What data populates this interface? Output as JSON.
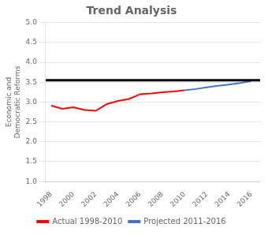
{
  "chart_data": {
    "type": "line",
    "title": "Trend Analysis",
    "ylabel": [
      "Economic and",
      "Democratic Reforms"
    ],
    "series": [
      {
        "name": "Actual 1998-2010",
        "color": "#FF0000",
        "x": [
          1998,
          1999,
          2000,
          2001,
          2002,
          2003,
          2004,
          2005,
          2006,
          2007,
          2008,
          2009,
          2010
        ],
        "values": [
          2.91,
          2.83,
          2.87,
          2.8,
          2.78,
          2.95,
          3.03,
          3.08,
          3.2,
          3.22,
          3.25,
          3.27,
          3.3
        ]
      },
      {
        "name": "Projected 2011-2016",
        "color": "#4472C4",
        "x": [
          2010,
          2011,
          2012,
          2013,
          2014,
          2015,
          2016
        ],
        "values": [
          3.3,
          3.33,
          3.37,
          3.41,
          3.44,
          3.48,
          3.53
        ]
      }
    ],
    "hlines": [
      {
        "value": 3.55,
        "color": "#000000"
      }
    ],
    "xlim": [
      1997.5,
      2016.8
    ],
    "xticks": [
      1998,
      2000,
      2002,
      2004,
      2006,
      2008,
      2010,
      2012,
      2014,
      2016
    ],
    "ylim": [
      1,
      5
    ],
    "yticks": [
      {
        "value": 1,
        "label": "1.0"
      },
      1.5,
      {
        "value": 2,
        "label": "2.0"
      },
      2.5,
      {
        "value": 3,
        "label": "3.0"
      },
      3.5,
      {
        "value": 4,
        "label": "4.0"
      },
      4.5,
      {
        "value": 5,
        "label": "5.0"
      }
    ],
    "grid": "y",
    "legend": "bottom"
  }
}
